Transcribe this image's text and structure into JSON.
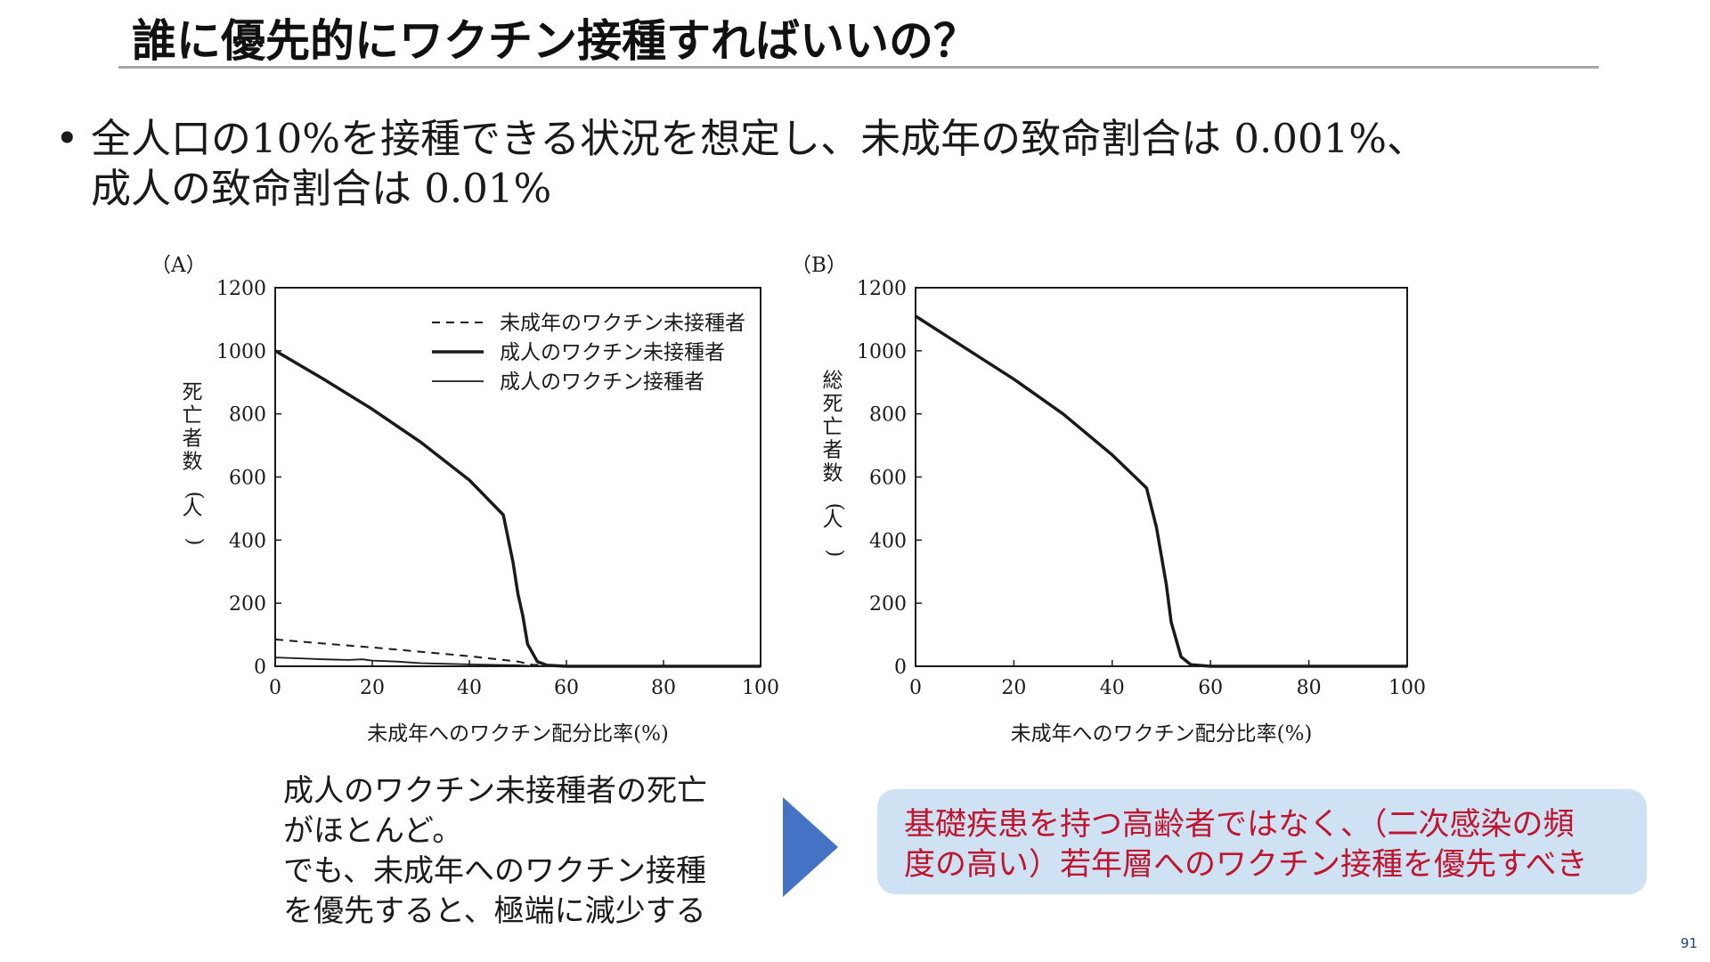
{
  "slide": {
    "title": "誰に優先的にワクチン接種すればいいの？",
    "bullet_lines": [
      "全人口の10%を接種できる状況を想定し、未成年の致命割合は 0.001%、",
      "成人の致命割合は 0.01%"
    ],
    "bullet_marker": "•",
    "note_lines": [
      "成人のワクチン未接種者の死亡",
      "がほとんど。",
      "でも、未成年へのワクチン接種",
      "を優先すると、極端に減少する"
    ],
    "callout_lines": [
      "基礎疾患を持つ高齢者ではなく、（二次感染の頻",
      "度の高い）若年層へのワクチン接種を優先すべき"
    ],
    "page_number": "91",
    "colors": {
      "arrow": "#4472c4",
      "callout_bg": "#cfe2f3",
      "callout_text": "#c0152f",
      "title_rule": "#a6a6a6"
    },
    "icons": {
      "arrow": "right-triangle-arrow-icon"
    }
  },
  "chart_data": [
    {
      "panel_label": "（A）",
      "type": "line",
      "xlabel": "未成年へのワクチン配分比率(%)",
      "ylabel": "死亡者数(人)",
      "xlim": [
        0,
        100
      ],
      "ylim": [
        0,
        1200
      ],
      "xticks": [
        0,
        20,
        40,
        60,
        80,
        100
      ],
      "yticks": [
        0,
        200,
        400,
        600,
        800,
        1000,
        1200
      ],
      "grid": false,
      "legend_position": "top-right",
      "series": [
        {
          "name": "未成年のワクチン未接種者",
          "style": "dashed",
          "x": [
            0,
            10,
            20,
            30,
            40,
            50,
            53,
            60,
            100
          ],
          "y": [
            85,
            72,
            60,
            46,
            32,
            15,
            5,
            0,
            0
          ]
        },
        {
          "name": "成人のワクチン未接種者",
          "style": "thick",
          "x": [
            0,
            10,
            20,
            30,
            40,
            47,
            49,
            50,
            51,
            52,
            54,
            56,
            60,
            100
          ],
          "y": [
            1000,
            910,
            815,
            710,
            590,
            480,
            330,
            230,
            160,
            70,
            15,
            3,
            0,
            0
          ]
        },
        {
          "name": "成人のワクチン接種者",
          "style": "thin",
          "x": [
            0,
            5,
            10,
            15,
            18,
            20,
            25,
            30,
            40,
            50,
            53,
            60,
            100
          ],
          "y": [
            28,
            25,
            22,
            20,
            22,
            18,
            15,
            10,
            6,
            3,
            1,
            0,
            0
          ]
        }
      ]
    },
    {
      "panel_label": "（B）",
      "type": "line",
      "xlabel": "未成年へのワクチン配分比率(%)",
      "ylabel": "総死亡者数(人)",
      "xlim": [
        0,
        100
      ],
      "ylim": [
        0,
        1200
      ],
      "xticks": [
        0,
        20,
        40,
        60,
        80,
        100
      ],
      "yticks": [
        0,
        200,
        400,
        600,
        800,
        1000,
        1200
      ],
      "grid": false,
      "series": [
        {
          "style": "thick",
          "x": [
            0,
            10,
            20,
            30,
            40,
            47,
            49,
            50,
            51,
            52,
            54,
            56,
            60,
            100
          ],
          "y": [
            1110,
            1010,
            910,
            800,
            670,
            565,
            440,
            350,
            260,
            140,
            30,
            5,
            0,
            0
          ]
        }
      ]
    }
  ]
}
